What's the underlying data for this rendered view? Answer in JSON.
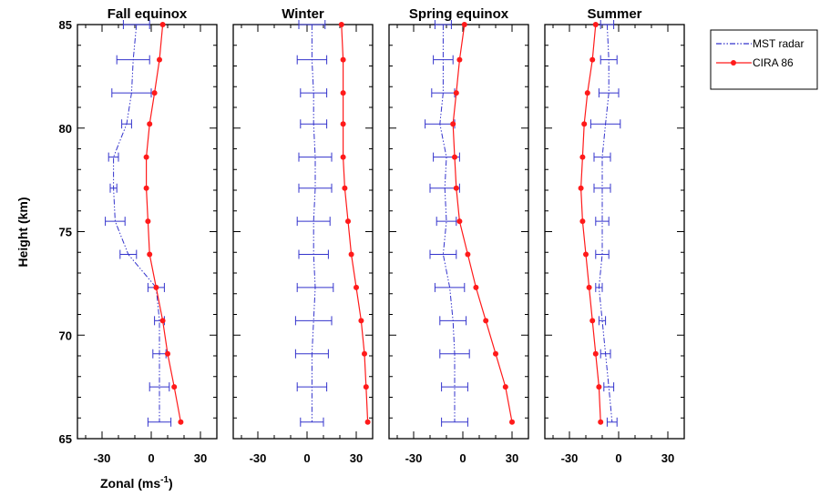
{
  "chart_data": {
    "type": "line",
    "ylabel": "Height (km)",
    "xlabel": {
      "main": "Zonal (ms",
      "sup": "-1",
      "end": ")"
    },
    "ylim": [
      65,
      85
    ],
    "xlim": [
      -45,
      40
    ],
    "yticks": [
      65,
      70,
      75,
      80,
      85
    ],
    "xticks": [
      -30,
      0,
      30
    ],
    "legend": {
      "position": "top-right",
      "entries": [
        "MST radar",
        "CIRA 86"
      ]
    },
    "colors": {
      "mst": "#3333cc",
      "cira": "#ff1a1a",
      "axes": "#000000"
    },
    "panels": [
      {
        "title": "Fall equinox",
        "mst": {
          "heights": [
            85,
            83.3,
            81.7,
            80.2,
            78.6,
            77.1,
            75.5,
            73.9,
            72.3,
            70.7,
            69.1,
            67.5,
            65.8
          ],
          "values": [
            -9,
            -11,
            -12,
            -15,
            -23,
            -23,
            -22,
            -14,
            3,
            5,
            5,
            5,
            5
          ],
          "errors": [
            8,
            10,
            12,
            3,
            3,
            2,
            6,
            5,
            5,
            3,
            4,
            6,
            7
          ]
        },
        "cira": {
          "heights": [
            85,
            83.3,
            81.7,
            80.2,
            78.6,
            77.1,
            75.5,
            73.9,
            72.3,
            70.7,
            69.1,
            67.5,
            65.8
          ],
          "values": [
            7,
            5,
            2,
            -1,
            -3,
            -3,
            -2,
            -1,
            3,
            7,
            10,
            14,
            18
          ]
        }
      },
      {
        "title": "Winter",
        "mst": {
          "heights": [
            85,
            83.3,
            81.7,
            80.2,
            78.6,
            77.1,
            75.5,
            73.9,
            72.3,
            70.7,
            69.1,
            67.5,
            65.8
          ],
          "values": [
            3,
            3,
            4,
            4,
            5,
            5,
            4,
            4,
            5,
            4,
            3,
            3,
            3
          ],
          "errors": [
            8,
            9,
            8,
            8,
            10,
            10,
            10,
            9,
            11,
            11,
            10,
            9,
            7
          ]
        },
        "cira": {
          "heights": [
            85,
            83.3,
            81.7,
            80.2,
            78.6,
            77.1,
            75.5,
            73.9,
            72.3,
            70.7,
            69.1,
            67.5,
            65.8
          ],
          "values": [
            21,
            22,
            22,
            22,
            22,
            23,
            25,
            27,
            30,
            33,
            35,
            36,
            37
          ]
        }
      },
      {
        "title": "Spring equinox",
        "mst": {
          "heights": [
            85,
            83.3,
            81.7,
            80.2,
            78.6,
            77.1,
            75.5,
            73.9,
            72.3,
            70.7,
            69.1,
            67.5,
            65.8
          ],
          "values": [
            -12,
            -12,
            -12,
            -14,
            -10,
            -11,
            -10,
            -12,
            -8,
            -6,
            -5,
            -5,
            -5
          ],
          "errors": [
            5,
            6,
            7,
            9,
            8,
            9,
            6,
            8,
            9,
            8,
            9,
            8,
            8
          ]
        },
        "cira": {
          "heights": [
            85,
            83.3,
            81.7,
            80.2,
            78.6,
            77.1,
            75.5,
            73.9,
            72.3,
            70.7,
            69.1,
            67.5,
            65.8
          ],
          "values": [
            1,
            -2,
            -4,
            -6,
            -5,
            -4,
            -2,
            3,
            8,
            14,
            20,
            26,
            30
          ]
        }
      },
      {
        "title": "Summer",
        "mst": {
          "heights": [
            85,
            83.3,
            81.7,
            80.2,
            78.6,
            77.1,
            75.5,
            73.9,
            72.3,
            70.7,
            69.1,
            67.5,
            65.8
          ],
          "values": [
            -7,
            -6,
            -6,
            -8,
            -10,
            -10,
            -10,
            -10,
            -12,
            -10,
            -8,
            -6,
            -4
          ],
          "errors": [
            4,
            5,
            6,
            9,
            5,
            5,
            4,
            4,
            2,
            2,
            3,
            3,
            3
          ]
        },
        "cira": {
          "heights": [
            85,
            83.3,
            81.7,
            80.2,
            78.6,
            77.1,
            75.5,
            73.9,
            72.3,
            70.7,
            69.1,
            67.5,
            65.8
          ],
          "values": [
            -14,
            -16,
            -19,
            -21,
            -22,
            -23,
            -22,
            -20,
            -18,
            -16,
            -14,
            -12,
            -11
          ]
        }
      }
    ]
  }
}
